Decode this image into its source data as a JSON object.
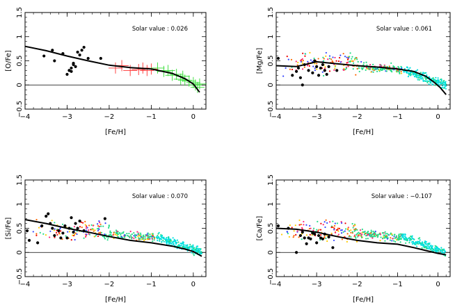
{
  "chart_data": [
    {
      "type": "scatter",
      "xlabel": "[Fe/H]",
      "ylabel": "[O/Fe]",
      "annotation": "Solar value :  0.026",
      "xlim": [
        -4,
        0.3
      ],
      "ylim": [
        -0.5,
        1.5
      ],
      "xticks": [
        "−4",
        "−3",
        "−2",
        "−1",
        "0"
      ],
      "yticks": [
        "−0.5",
        "0",
        "0.5",
        "1",
        "1.5"
      ],
      "model_curve": {
        "x": [
          -4.0,
          -3.5,
          -3.0,
          -2.5,
          -2.0,
          -1.5,
          -1.0,
          -0.5,
          -0.2,
          0.0,
          0.15
        ],
        "y": [
          0.8,
          0.71,
          0.6,
          0.5,
          0.41,
          0.36,
          0.33,
          0.24,
          0.13,
          0.02,
          -0.15
        ]
      },
      "series": [
        {
          "marker": "filled-circle",
          "color": "#000000",
          "x": [
            -3.55,
            -3.35,
            -3.3,
            -3.1,
            -2.95,
            -2.9,
            -2.85,
            -2.8,
            -2.7,
            -2.65,
            -2.6,
            -2.5,
            -3.0,
            -2.95,
            -2.9,
            -2.85,
            -2.75,
            -2.2
          ],
          "y": [
            0.6,
            0.72,
            0.5,
            0.65,
            0.3,
            0.35,
            0.42,
            0.38,
            0.62,
            0.72,
            0.78,
            0.55,
            0.22,
            0.3,
            0.28,
            0.45,
            0.68,
            0.55
          ]
        },
        {
          "marker": "cross-errorbar",
          "color": "#ff3030",
          "x": [
            -1.85,
            -1.7,
            -1.5,
            -1.3,
            -1.2,
            -1.1,
            -1.0
          ],
          "y": [
            0.35,
            0.4,
            0.3,
            0.32,
            0.35,
            0.3,
            0.33
          ]
        },
        {
          "marker": "cross-errorbar",
          "color": "#33dd33",
          "x": [
            -0.85,
            -0.7,
            -0.6,
            -0.5,
            -0.4,
            -0.3,
            -0.25,
            -0.2,
            -0.1,
            0.0,
            0.05,
            0.1,
            0.15
          ],
          "y": [
            0.35,
            0.28,
            0.3,
            0.2,
            0.22,
            0.12,
            0.18,
            0.1,
            0.08,
            0.05,
            0.0,
            -0.05,
            0.02
          ]
        }
      ]
    },
    {
      "type": "scatter",
      "xlabel": "[Fe/H]",
      "ylabel": "[Mg/Fe]",
      "annotation": "Solar value :  0.061",
      "xlim": [
        -4,
        0.3
      ],
      "ylim": [
        -0.5,
        1.5
      ],
      "xticks": [
        "−4",
        "−3",
        "−2",
        "−1",
        "0"
      ],
      "yticks": [
        "−0.5",
        "0",
        "0.5",
        "1",
        "1.5"
      ],
      "model_curve": {
        "x": [
          -4.0,
          -3.5,
          -3.0,
          -2.5,
          -2.0,
          -1.5,
          -1.0,
          -0.6,
          -0.3,
          -0.1,
          0.05,
          0.2
        ],
        "y": [
          0.4,
          0.38,
          0.48,
          0.44,
          0.4,
          0.37,
          0.33,
          0.28,
          0.18,
          0.06,
          -0.05,
          -0.2
        ]
      },
      "series": [
        {
          "marker": "filled-circle",
          "color": "#000000",
          "x": [
            -3.95,
            -3.6,
            -3.5,
            -3.45,
            -3.4,
            -3.35,
            -3.3,
            -3.2,
            -3.1,
            -3.05,
            -3.0,
            -2.95,
            -2.9,
            -2.85,
            -2.8,
            -2.75,
            -2.7,
            -2.5
          ],
          "y": [
            0.55,
            0.2,
            0.28,
            0.35,
            0.15,
            0.0,
            0.42,
            0.3,
            0.25,
            0.5,
            0.38,
            0.2,
            0.35,
            0.42,
            0.3,
            0.22,
            0.38,
            0.3
          ]
        },
        {
          "marker": "dots",
          "colors": [
            "#00e0e0",
            "#22dd88",
            "#ffcc00",
            "#ff6600",
            "#3344ff",
            "#ff2277",
            "#ee0000"
          ]
        }
      ]
    },
    {
      "type": "scatter",
      "xlabel": "[Fe/H]",
      "ylabel": "[Si/Fe]",
      "annotation": "Solar value :  0.070",
      "xlim": [
        -4,
        0.3
      ],
      "ylim": [
        -0.5,
        1.5
      ],
      "xticks": [
        "−4",
        "−3",
        "−2",
        "−1",
        "0"
      ],
      "yticks": [
        "−0.5",
        "0",
        "0.5",
        "1",
        "1.5"
      ],
      "model_curve": {
        "x": [
          -4.0,
          -3.5,
          -3.0,
          -2.5,
          -2.0,
          -1.5,
          -1.0,
          -0.5,
          -0.2,
          0.0,
          0.2
        ],
        "y": [
          0.68,
          0.6,
          0.5,
          0.42,
          0.33,
          0.25,
          0.2,
          0.13,
          0.07,
          0.02,
          -0.08
        ]
      },
      "series": [
        {
          "marker": "filled-circle",
          "color": "#000000",
          "x": [
            -3.95,
            -3.9,
            -3.6,
            -3.5,
            -3.45,
            -3.4,
            -3.35,
            -3.3,
            -3.2,
            -3.15,
            -3.1,
            -3.05,
            -3.0,
            -2.95,
            -2.9,
            -2.85,
            -2.8,
            -2.75,
            -2.7,
            -2.6,
            -2.1,
            -3.7
          ],
          "y": [
            0.45,
            0.25,
            0.55,
            0.75,
            0.8,
            0.6,
            0.5,
            0.35,
            0.45,
            0.3,
            0.4,
            0.55,
            0.3,
            0.5,
            0.72,
            0.42,
            0.6,
            0.5,
            0.65,
            0.45,
            0.7,
            0.2
          ]
        },
        {
          "marker": "dots",
          "colors": [
            "#00e0e0",
            "#22dd88",
            "#ffcc00",
            "#ff6600",
            "#3344ff",
            "#ff2277",
            "#ee0000"
          ]
        }
      ]
    },
    {
      "type": "scatter",
      "xlabel": "[Fe/H]",
      "ylabel": "[Ca/Fe]",
      "annotation": "Solar value :  −0.107",
      "xlim": [
        -4,
        0.3
      ],
      "ylim": [
        -0.5,
        1.5
      ],
      "xticks": [
        "−4",
        "−3",
        "−2",
        "−1",
        "0"
      ],
      "yticks": [
        "−0.5",
        "0",
        "0.5",
        "1",
        "1.5"
      ],
      "model_curve": {
        "x": [
          -4.0,
          -3.5,
          -3.0,
          -2.5,
          -2.0,
          -1.5,
          -1.0,
          -0.6,
          -0.3,
          0.0,
          0.2
        ],
        "y": [
          0.5,
          0.48,
          0.42,
          0.33,
          0.25,
          0.2,
          0.17,
          0.1,
          0.04,
          -0.02,
          -0.05
        ]
      },
      "series": [
        {
          "marker": "filled-circle",
          "color": "#000000",
          "x": [
            -3.95,
            -3.7,
            -3.5,
            -3.4,
            -3.35,
            -3.3,
            -3.25,
            -3.2,
            -3.1,
            -3.05,
            -3.0,
            -2.95,
            -2.9,
            -2.85,
            -2.8,
            -2.7,
            -2.6,
            -3.15
          ],
          "y": [
            0.55,
            0.5,
            0.0,
            0.35,
            0.42,
            0.3,
            0.18,
            0.3,
            0.4,
            0.38,
            0.2,
            0.35,
            0.3,
            0.28,
            0.38,
            0.32,
            0.1,
            0.28
          ]
        },
        {
          "marker": "dots",
          "colors": [
            "#00e0e0",
            "#22dd88",
            "#ffcc00",
            "#ff6600",
            "#3344ff",
            "#ff2277",
            "#ee0000"
          ]
        }
      ]
    }
  ]
}
